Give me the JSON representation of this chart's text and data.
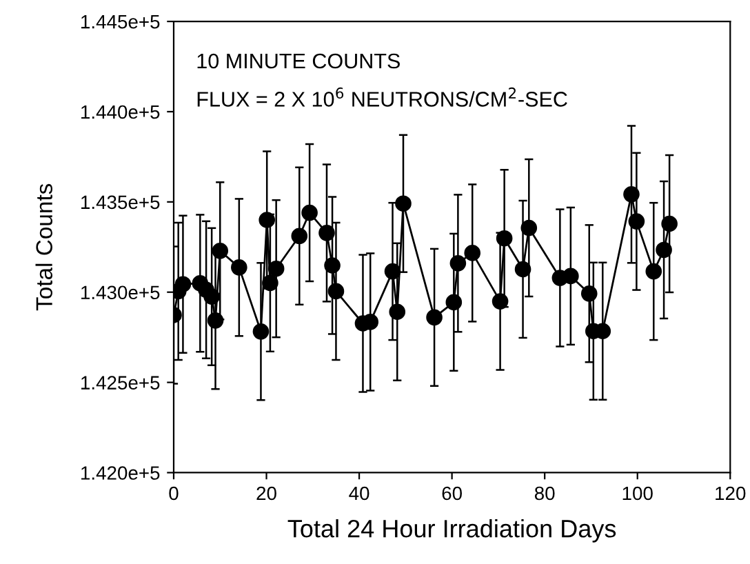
{
  "chart_data": {
    "type": "line",
    "xlabel": "Total 24 Hour Irradiation Days",
    "ylabel": "Total Counts",
    "annotations": [
      "10 MINUTE COUNTS",
      "FLUX = 2 X 10$^{6}$ NEUTRONS/CM$^{2}$-SEC"
    ],
    "x": [
      0,
      1.0,
      2.0,
      5.7,
      7.0,
      8.2,
      9.0,
      10.0,
      14.1,
      18.8,
      20.1,
      20.8,
      22.1,
      27.1,
      29.3,
      33.0,
      34.2,
      35.0,
      40.8,
      42.4,
      47.2,
      48.2,
      49.5,
      56.2,
      60.4,
      61.3,
      64.4,
      70.4,
      71.3,
      75.3,
      76.6,
      83.3,
      85.6,
      89.6,
      90.5,
      92.5,
      98.7,
      99.8,
      103.5,
      105.7,
      106.9
    ],
    "series": [
      {
        "color": "#000000",
        "values": [
          142873,
          143005,
          143044,
          143049,
          143013,
          142975,
          142843,
          143229,
          143137,
          142782,
          143400,
          143051,
          143130,
          143311,
          143440,
          143328,
          143148,
          143005,
          142827,
          142835,
          143115,
          142891,
          143491,
          142860,
          142944,
          143160,
          143217,
          142949,
          143298,
          143127,
          143356,
          143079,
          143089,
          142992,
          142784,
          142784,
          143542,
          143392,
          143115,
          143234,
          143379
        ],
        "errors": [
          380,
          380,
          380,
          380,
          380,
          380,
          380,
          380,
          380,
          380,
          380,
          380,
          380,
          380,
          380,
          380,
          380,
          380,
          380,
          380,
          380,
          380,
          380,
          380,
          380,
          380,
          380,
          380,
          380,
          380,
          380,
          380,
          380,
          380,
          380,
          380,
          380,
          380,
          380,
          380,
          380
        ]
      }
    ],
    "xlim": [
      0,
      120
    ],
    "xticks": [
      0,
      20,
      40,
      60,
      80,
      100,
      120
    ],
    "ylim": [
      142000,
      144500
    ],
    "yticks": [
      {
        "value": 142000,
        "label": "1.420e+5"
      },
      {
        "value": 142500,
        "label": "1.425e+5"
      },
      {
        "value": 143000,
        "label": "1.430e+5"
      },
      {
        "value": 143500,
        "label": "1.435e+5"
      },
      {
        "value": 144000,
        "label": "1.440e+5"
      },
      {
        "value": 144500,
        "label": "1.445e+5"
      }
    ],
    "marker": "circle",
    "line_style": "solid",
    "grid": false,
    "legend": false
  }
}
